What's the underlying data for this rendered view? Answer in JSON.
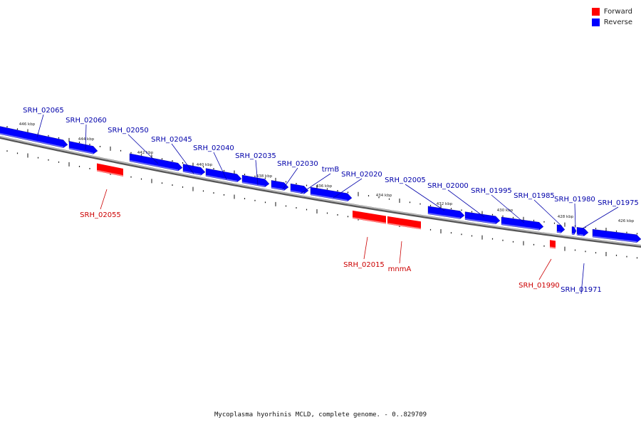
{
  "legend": {
    "forward": {
      "label": "Forward",
      "color": "#ff0000"
    },
    "reverse": {
      "label": "Reverse",
      "color": "#0000ff"
    }
  },
  "caption": "Mycoplasma hyorhinis MCLD, complete genome. - 0..829709",
  "axis_labels": [
    "446 kbp",
    "444 kbp",
    "442 kbp",
    "440 kbp",
    "438 kbp",
    "436 kbp",
    "434 kbp",
    "432 kbp",
    "430 kbp",
    "428 kbp",
    "426 kbp"
  ],
  "genes": [
    {
      "name": "SRH_02065",
      "strand": "reverse"
    },
    {
      "name": "SRH_02060",
      "strand": "reverse"
    },
    {
      "name": "SRH_02055",
      "strand": "forward"
    },
    {
      "name": "SRH_02050",
      "strand": "reverse"
    },
    {
      "name": "SRH_02045",
      "strand": "reverse"
    },
    {
      "name": "SRH_02040",
      "strand": "reverse"
    },
    {
      "name": "SRH_02035",
      "strand": "reverse"
    },
    {
      "name": "SRH_02030",
      "strand": "reverse"
    },
    {
      "name": "trmB",
      "strand": "reverse"
    },
    {
      "name": "SRH_02020",
      "strand": "reverse"
    },
    {
      "name": "SRH_02015",
      "strand": "forward"
    },
    {
      "name": "mnmA",
      "strand": "forward"
    },
    {
      "name": "SRH_02005",
      "strand": "reverse"
    },
    {
      "name": "SRH_02000",
      "strand": "reverse"
    },
    {
      "name": "SRH_01995",
      "strand": "reverse"
    },
    {
      "name": "SRH_01990",
      "strand": "forward"
    },
    {
      "name": "SRH_01985",
      "strand": "reverse"
    },
    {
      "name": "SRH_01980",
      "strand": "reverse"
    },
    {
      "name": "SRH_01975",
      "strand": "reverse"
    },
    {
      "name": "SRH_01971",
      "strand": "reverse"
    }
  ]
}
